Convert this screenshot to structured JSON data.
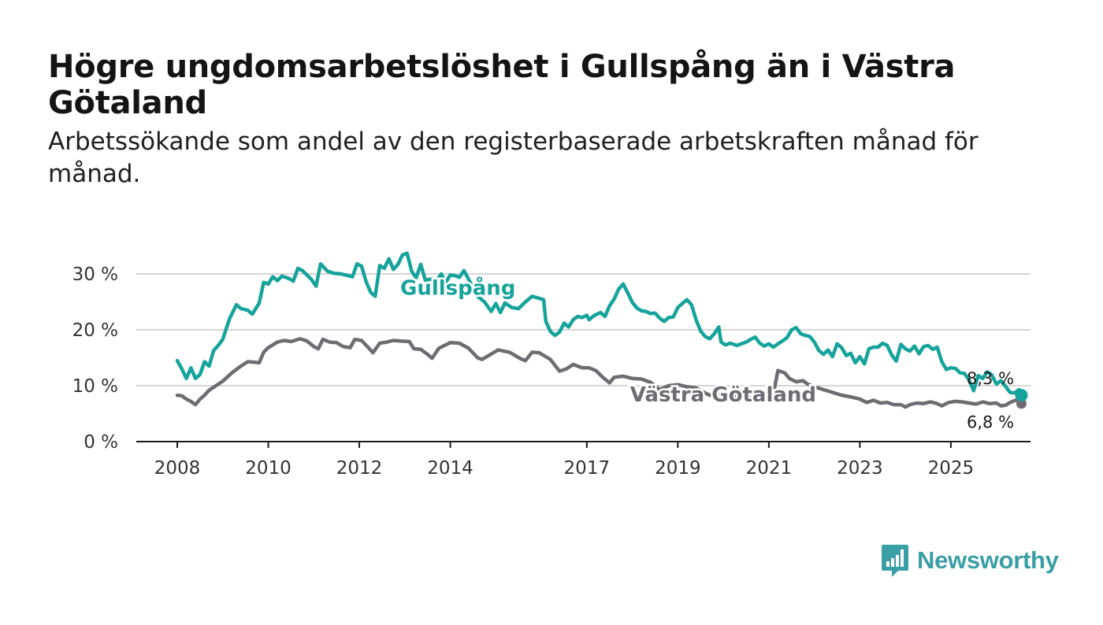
{
  "title": "Högre ungdomsarbetslöshet i Gullspång än i Västra Götaland",
  "subtitle": "Arbetssökande som andel av den registerbaserade arbetskraften månad för månad.",
  "logo_text": "Newsworthy",
  "colors": {
    "gullspang": "#16a39b",
    "vastra": "#6e6c72",
    "grid": "#d6d6d6",
    "axis": "#1a1a1a",
    "logo": "#3a9ea5"
  },
  "chart_data": {
    "type": "line",
    "title": "Högre ungdomsarbetslöshet i Gullspång än i Västra Götaland",
    "xlabel": "",
    "ylabel": "",
    "xlim": [
      2007.1,
      2026.75
    ],
    "ylim": [
      0,
      30
    ],
    "y_ticks": [
      0,
      10,
      20,
      30
    ],
    "y_tick_labels": [
      "0 %",
      "10 %",
      "20 %",
      "30 %"
    ],
    "x_ticks": [
      2008,
      2010,
      2012,
      2014,
      2017,
      2019,
      2021,
      2023,
      2025
    ],
    "grid": true,
    "series": [
      {
        "name": "Gullspång",
        "color": "#16a39b",
        "end_label": "8,3 %",
        "points": [
          [
            2008.0,
            14.5
          ],
          [
            2008.1,
            13.0
          ],
          [
            2008.2,
            11.3
          ],
          [
            2008.3,
            13.2
          ],
          [
            2008.4,
            11.3
          ],
          [
            2008.5,
            12.0
          ],
          [
            2008.6,
            14.3
          ],
          [
            2008.7,
            13.5
          ],
          [
            2008.8,
            16.3
          ],
          [
            2008.9,
            17.2
          ],
          [
            2009.0,
            18.3
          ],
          [
            2009.15,
            22.0
          ],
          [
            2009.3,
            24.5
          ],
          [
            2009.4,
            23.8
          ],
          [
            2009.55,
            23.5
          ],
          [
            2009.65,
            22.8
          ],
          [
            2009.8,
            24.8
          ],
          [
            2009.9,
            28.5
          ],
          [
            2010.0,
            28.2
          ],
          [
            2010.1,
            29.5
          ],
          [
            2010.2,
            28.8
          ],
          [
            2010.3,
            29.6
          ],
          [
            2010.45,
            29.2
          ],
          [
            2010.55,
            28.7
          ],
          [
            2010.65,
            31.0
          ],
          [
            2010.75,
            30.6
          ],
          [
            2010.85,
            29.8
          ],
          [
            2010.95,
            29.0
          ],
          [
            2011.05,
            27.8
          ],
          [
            2011.15,
            31.8
          ],
          [
            2011.3,
            30.5
          ],
          [
            2011.45,
            30.1
          ],
          [
            2011.6,
            30.0
          ],
          [
            2011.75,
            29.7
          ],
          [
            2011.85,
            29.5
          ],
          [
            2011.95,
            31.8
          ],
          [
            2012.05,
            31.4
          ],
          [
            2012.15,
            28.6
          ],
          [
            2012.25,
            26.7
          ],
          [
            2012.35,
            26.0
          ],
          [
            2012.45,
            31.5
          ],
          [
            2012.55,
            31.0
          ],
          [
            2012.65,
            32.7
          ],
          [
            2012.75,
            30.8
          ],
          [
            2012.85,
            31.7
          ],
          [
            2012.95,
            33.4
          ],
          [
            2013.05,
            33.7
          ],
          [
            2013.15,
            30.5
          ],
          [
            2013.25,
            29.3
          ],
          [
            2013.35,
            31.7
          ],
          [
            2013.45,
            28.9
          ],
          [
            2013.6,
            29.1
          ],
          [
            2013.7,
            28.8
          ],
          [
            2013.8,
            30.0
          ],
          [
            2013.9,
            28.5
          ],
          [
            2014.0,
            29.8
          ],
          [
            2014.1,
            29.7
          ],
          [
            2014.2,
            29.4
          ],
          [
            2014.3,
            30.6
          ],
          [
            2014.6,
            26.0
          ],
          [
            2014.75,
            25.0
          ],
          [
            2014.9,
            23.3
          ],
          [
            2015.0,
            24.7
          ],
          [
            2015.1,
            23.1
          ],
          [
            2015.2,
            24.8
          ],
          [
            2015.35,
            24.0
          ],
          [
            2015.5,
            23.8
          ],
          [
            2015.65,
            25.0
          ],
          [
            2015.8,
            26.0
          ],
          [
            2016.05,
            25.4
          ],
          [
            2016.1,
            21.5
          ],
          [
            2016.2,
            19.7
          ],
          [
            2016.3,
            19.0
          ],
          [
            2016.4,
            19.6
          ],
          [
            2016.5,
            21.2
          ],
          [
            2016.6,
            20.5
          ],
          [
            2016.7,
            21.8
          ],
          [
            2016.8,
            22.4
          ],
          [
            2016.9,
            22.2
          ],
          [
            2017.0,
            22.6
          ],
          [
            2017.05,
            21.8
          ],
          [
            2017.15,
            22.5
          ],
          [
            2017.3,
            23.1
          ],
          [
            2017.4,
            22.4
          ],
          [
            2017.5,
            24.3
          ],
          [
            2017.6,
            25.5
          ],
          [
            2017.7,
            27.3
          ],
          [
            2017.8,
            28.2
          ],
          [
            2017.9,
            26.6
          ],
          [
            2018.0,
            24.9
          ],
          [
            2018.1,
            23.9
          ],
          [
            2018.2,
            23.4
          ],
          [
            2018.3,
            23.3
          ],
          [
            2018.4,
            22.9
          ],
          [
            2018.5,
            23.0
          ],
          [
            2018.6,
            22.1
          ],
          [
            2018.7,
            21.5
          ],
          [
            2018.8,
            22.2
          ],
          [
            2018.9,
            22.3
          ],
          [
            2019.0,
            24.0
          ],
          [
            2019.1,
            24.7
          ],
          [
            2019.2,
            25.4
          ],
          [
            2019.3,
            24.5
          ],
          [
            2019.4,
            21.8
          ],
          [
            2019.5,
            19.8
          ],
          [
            2019.6,
            18.8
          ],
          [
            2019.7,
            18.4
          ],
          [
            2019.8,
            19.3
          ],
          [
            2019.9,
            20.5
          ],
          [
            2019.95,
            17.8
          ],
          [
            2020.05,
            17.3
          ],
          [
            2020.15,
            17.6
          ],
          [
            2020.3,
            17.2
          ],
          [
            2020.4,
            17.5
          ],
          [
            2020.5,
            17.8
          ],
          [
            2020.6,
            18.3
          ],
          [
            2020.7,
            18.7
          ],
          [
            2020.8,
            17.6
          ],
          [
            2020.9,
            17.1
          ],
          [
            2021.0,
            17.5
          ],
          [
            2021.1,
            16.9
          ],
          [
            2021.2,
            17.5
          ],
          [
            2021.3,
            18.0
          ],
          [
            2021.4,
            18.6
          ],
          [
            2021.5,
            20.0
          ],
          [
            2021.6,
            20.4
          ],
          [
            2021.7,
            19.3
          ],
          [
            2021.8,
            19.0
          ],
          [
            2021.9,
            18.8
          ],
          [
            2022.0,
            17.8
          ],
          [
            2022.1,
            16.3
          ],
          [
            2022.2,
            15.6
          ],
          [
            2022.3,
            16.4
          ],
          [
            2022.4,
            15.2
          ],
          [
            2022.5,
            17.5
          ],
          [
            2022.6,
            16.8
          ],
          [
            2022.7,
            15.4
          ],
          [
            2022.8,
            15.8
          ],
          [
            2022.9,
            14.1
          ],
          [
            2023.0,
            15.2
          ],
          [
            2023.1,
            13.9
          ],
          [
            2023.2,
            16.6
          ],
          [
            2023.3,
            16.9
          ],
          [
            2023.4,
            16.9
          ],
          [
            2023.5,
            17.6
          ],
          [
            2023.6,
            17.2
          ],
          [
            2023.7,
            15.5
          ],
          [
            2023.8,
            14.4
          ],
          [
            2023.9,
            17.4
          ],
          [
            2024.0,
            16.6
          ],
          [
            2024.1,
            16.2
          ],
          [
            2024.2,
            17.1
          ],
          [
            2024.3,
            15.7
          ],
          [
            2024.4,
            17.0
          ],
          [
            2024.5,
            17.2
          ],
          [
            2024.6,
            16.5
          ],
          [
            2024.7,
            16.9
          ],
          [
            2024.8,
            14.3
          ],
          [
            2024.9,
            12.9
          ],
          [
            2025.0,
            13.2
          ],
          [
            2025.1,
            13.1
          ],
          [
            2025.2,
            12.3
          ],
          [
            2025.3,
            12.2
          ],
          [
            2025.4,
            11.0
          ],
          [
            2025.5,
            9.1
          ],
          [
            2025.6,
            11.8
          ],
          [
            2025.7,
            11.3
          ],
          [
            2025.8,
            12.5
          ],
          [
            2025.9,
            11.9
          ],
          [
            2026.0,
            10.3
          ],
          [
            2026.1,
            10.9
          ],
          [
            2026.2,
            9.9
          ],
          [
            2026.3,
            8.8
          ],
          [
            2026.4,
            8.7
          ],
          [
            2026.5,
            9.3
          ],
          [
            2026.55,
            8.3
          ]
        ]
      },
      {
        "name": "Västra Götaland",
        "color": "#6e6c72",
        "end_label": "6,8 %",
        "points": [
          [
            2008.0,
            8.3
          ],
          [
            2008.1,
            8.2
          ],
          [
            2008.2,
            7.6
          ],
          [
            2008.3,
            7.2
          ],
          [
            2008.4,
            6.6
          ],
          [
            2008.5,
            7.6
          ],
          [
            2008.6,
            8.3
          ],
          [
            2008.7,
            9.2
          ],
          [
            2008.85,
            10.0
          ],
          [
            2009.0,
            10.8
          ],
          [
            2009.2,
            12.3
          ],
          [
            2009.4,
            13.5
          ],
          [
            2009.55,
            14.3
          ],
          [
            2009.7,
            14.2
          ],
          [
            2009.8,
            14.1
          ],
          [
            2009.9,
            16.0
          ],
          [
            2010.0,
            16.8
          ],
          [
            2010.2,
            17.8
          ],
          [
            2010.35,
            18.1
          ],
          [
            2010.5,
            17.9
          ],
          [
            2010.7,
            18.4
          ],
          [
            2010.85,
            18.0
          ],
          [
            2011.0,
            17.0
          ],
          [
            2011.1,
            16.6
          ],
          [
            2011.2,
            18.3
          ],
          [
            2011.35,
            17.8
          ],
          [
            2011.5,
            17.7
          ],
          [
            2011.65,
            17.0
          ],
          [
            2011.8,
            16.8
          ],
          [
            2011.9,
            18.3
          ],
          [
            2012.05,
            18.1
          ],
          [
            2012.2,
            16.8
          ],
          [
            2012.3,
            15.9
          ],
          [
            2012.45,
            17.6
          ],
          [
            2012.6,
            17.8
          ],
          [
            2012.75,
            18.1
          ],
          [
            2012.9,
            18.0
          ],
          [
            2013.1,
            17.9
          ],
          [
            2013.2,
            16.6
          ],
          [
            2013.35,
            16.5
          ],
          [
            2013.5,
            15.6
          ],
          [
            2013.6,
            14.9
          ],
          [
            2013.75,
            16.7
          ],
          [
            2014.0,
            17.7
          ],
          [
            2014.2,
            17.6
          ],
          [
            2014.4,
            16.7
          ],
          [
            2014.6,
            15.0
          ],
          [
            2014.7,
            14.7
          ],
          [
            2015.05,
            16.4
          ],
          [
            2015.3,
            16.0
          ],
          [
            2015.55,
            14.8
          ],
          [
            2015.65,
            14.5
          ],
          [
            2015.8,
            16.0
          ],
          [
            2015.95,
            15.9
          ],
          [
            2016.2,
            14.7
          ],
          [
            2016.4,
            12.6
          ],
          [
            2016.55,
            13.0
          ],
          [
            2016.7,
            13.8
          ],
          [
            2016.9,
            13.2
          ],
          [
            2017.05,
            13.2
          ],
          [
            2017.2,
            12.7
          ],
          [
            2017.35,
            11.5
          ],
          [
            2017.5,
            10.5
          ],
          [
            2017.6,
            11.5
          ],
          [
            2017.8,
            11.7
          ],
          [
            2018.0,
            11.3
          ],
          [
            2018.2,
            11.2
          ],
          [
            2018.4,
            10.6
          ],
          [
            2018.5,
            10.0
          ],
          [
            2018.6,
            9.3
          ],
          [
            2018.8,
            10.0
          ],
          [
            2019.0,
            10.2
          ],
          [
            2019.2,
            9.8
          ],
          [
            2019.4,
            9.6
          ],
          [
            2019.55,
            8.9
          ],
          [
            2019.7,
            8.3
          ],
          [
            2019.85,
            8.6
          ],
          [
            2020.05,
            8.7
          ],
          [
            2020.2,
            8.4
          ],
          [
            2020.5,
            7.9
          ],
          [
            2020.8,
            7.6
          ],
          [
            2021.0,
            7.4
          ],
          [
            2021.1,
            8.6
          ],
          [
            2021.2,
            12.7
          ],
          [
            2021.35,
            12.3
          ],
          [
            2021.45,
            11.3
          ],
          [
            2021.6,
            10.7
          ],
          [
            2021.75,
            10.9
          ],
          [
            2021.85,
            10.3
          ],
          [
            2022.0,
            9.8
          ],
          [
            2022.2,
            9.3
          ],
          [
            2022.4,
            8.8
          ],
          [
            2022.6,
            8.3
          ],
          [
            2022.8,
            8.0
          ],
          [
            2023.0,
            7.6
          ],
          [
            2023.15,
            7.0
          ],
          [
            2023.3,
            7.4
          ],
          [
            2023.45,
            6.9
          ],
          [
            2023.6,
            7.0
          ],
          [
            2023.75,
            6.6
          ],
          [
            2023.9,
            6.6
          ],
          [
            2024.0,
            6.2
          ],
          [
            2024.1,
            6.6
          ],
          [
            2024.25,
            6.9
          ],
          [
            2024.4,
            6.8
          ],
          [
            2024.55,
            7.1
          ],
          [
            2024.7,
            6.8
          ],
          [
            2024.8,
            6.4
          ],
          [
            2024.95,
            7.0
          ],
          [
            2025.1,
            7.2
          ],
          [
            2025.25,
            7.1
          ],
          [
            2025.4,
            6.9
          ],
          [
            2025.55,
            6.7
          ],
          [
            2025.7,
            7.1
          ],
          [
            2025.85,
            6.8
          ],
          [
            2026.0,
            6.9
          ],
          [
            2026.1,
            6.4
          ],
          [
            2026.2,
            6.5
          ],
          [
            2026.3,
            7.0
          ],
          [
            2026.45,
            7.5
          ],
          [
            2026.55,
            6.8
          ]
        ]
      }
    ]
  }
}
